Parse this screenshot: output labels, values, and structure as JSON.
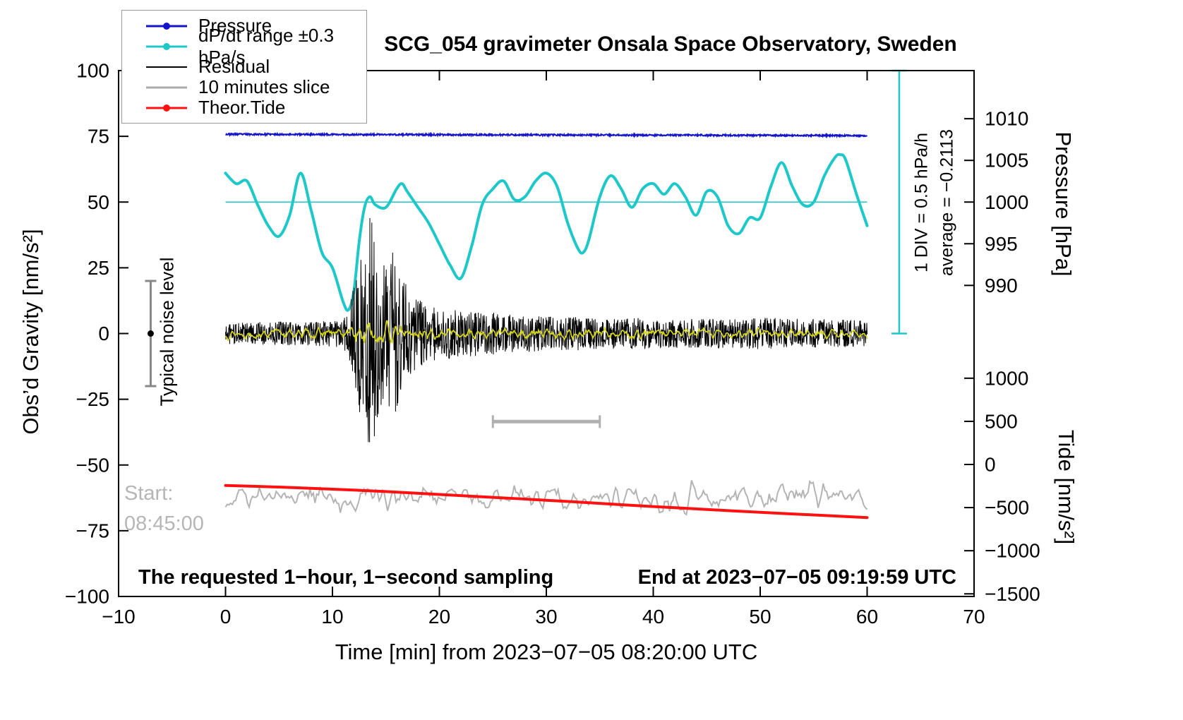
{
  "title": "SCG_054 gravimeter Onsala Space Observatory, Sweden",
  "legend": {
    "items": [
      {
        "label": "Pressure",
        "color": "#1414cc",
        "marker": "line-dot"
      },
      {
        "label": "dP/dt range ±0.3 hPa/s",
        "color": "#1fc8c8",
        "marker": "line-dot"
      },
      {
        "label": "Residual",
        "color": "#000000",
        "marker": "line"
      },
      {
        "label": "10 minutes slice",
        "color": "#aaaaaa",
        "marker": "line"
      },
      {
        "label": "Theor.Tide",
        "color": "#ff1111",
        "marker": "line-dot"
      }
    ]
  },
  "axes": {
    "x": {
      "label": "Time [min] from 2023−07−05 08:20:00 UTC",
      "min": -10,
      "max": 70,
      "ticks": [
        -10,
        0,
        10,
        20,
        30,
        40,
        50,
        60,
        70
      ],
      "tick_labels": [
        "−10",
        "0",
        "10",
        "20",
        "30",
        "40",
        "50",
        "60",
        "70"
      ]
    },
    "y_left": {
      "label": "Obs’d Gravity [nm/s²]",
      "min": -100,
      "max": 100,
      "ticks": [
        -100,
        -75,
        -50,
        -25,
        0,
        25,
        50,
        75,
        100
      ],
      "tick_labels": [
        "−100",
        "−75",
        "−50",
        "−25",
        "0",
        "25",
        "50",
        "75",
        "100"
      ]
    },
    "y_right_pressure": {
      "label": "Pressure [hPa]",
      "ticks": [
        1010,
        1005,
        1000,
        995,
        990
      ],
      "tick_labels": [
        "1010",
        "1005",
        "1000",
        "995",
        "990"
      ],
      "map": {
        "ref_hpa": 1000,
        "ref_gravity": 50,
        "gravity_per_hpa": 3.17
      }
    },
    "y_right_tide": {
      "label": "Tide [nm/s²]",
      "ticks": [
        1000,
        500,
        0,
        -500,
        -1000,
        -1500
      ],
      "tick_labels": [
        "1000",
        "500",
        "0",
        "−500",
        "−1000",
        "−1500"
      ],
      "map": {
        "ref_value": 0,
        "ref_gravity": -49.8,
        "gravity_per_unit": 0.0328
      }
    }
  },
  "annotations": {
    "noise_label": "Typical noise level",
    "start_label": "Start:",
    "start_time": "08:45:00",
    "bottom_left": "The requested 1−hour, 1−second sampling",
    "bottom_right": "End at 2023−07−05 09:19:59 UTC",
    "div_label": "1 DIV = 0.5 hPa/h",
    "average_label": "average = −0.2113"
  },
  "chart_data": {
    "type": "line",
    "x_axis": {
      "label": "Time [min] from 2023−07−05 08:20:00 UTC",
      "range": [
        -10,
        70
      ]
    },
    "y_axis_left": {
      "label": "Obs’d Gravity [nm/s²]",
      "range": [
        -100,
        100
      ]
    },
    "y_axis_right_pressure": {
      "label": "Pressure [hPa]",
      "range_shown": [
        990,
        1010
      ]
    },
    "y_axis_right_tide": {
      "label": "Tide [nm/s²]",
      "range_shown": [
        -1500,
        1000
      ]
    },
    "series": [
      {
        "name": "Pressure",
        "color": "#1414cc",
        "style": "noisy-line",
        "note": "flat pressure trace ≈1008 hPa, plotted near gravity 75.5",
        "baseline_points": [
          [
            0,
            75.8
          ],
          [
            20,
            75.6
          ],
          [
            40,
            75.45
          ],
          [
            60,
            75.3
          ]
        ],
        "noise_amplitude": 0.3
      },
      {
        "name": "dP/dt",
        "color": "#1fc8c8",
        "style": "smooth",
        "points": [
          [
            0,
            61
          ],
          [
            1,
            57
          ],
          [
            2,
            58
          ],
          [
            3,
            49
          ],
          [
            4,
            41
          ],
          [
            5,
            37
          ],
          [
            6,
            45
          ],
          [
            7,
            61
          ],
          [
            8,
            47
          ],
          [
            9,
            31
          ],
          [
            10,
            25
          ],
          [
            11,
            12
          ],
          [
            11.5,
            9
          ],
          [
            12,
            16
          ],
          [
            12.5,
            35
          ],
          [
            13,
            48
          ],
          [
            13.5,
            52
          ],
          [
            14,
            49
          ],
          [
            15,
            48
          ],
          [
            16,
            55
          ],
          [
            16.5,
            57
          ],
          [
            17,
            54
          ],
          [
            18,
            48
          ],
          [
            19,
            42
          ],
          [
            20,
            34
          ],
          [
            21,
            26
          ],
          [
            22,
            21
          ],
          [
            23,
            33
          ],
          [
            24,
            49
          ],
          [
            25,
            55
          ],
          [
            26,
            58
          ],
          [
            27,
            51
          ],
          [
            28,
            52
          ],
          [
            29,
            58
          ],
          [
            30,
            61
          ],
          [
            31,
            56
          ],
          [
            32,
            42
          ],
          [
            33,
            32
          ],
          [
            33.5,
            31
          ],
          [
            34,
            36
          ],
          [
            35,
            52
          ],
          [
            36,
            60
          ],
          [
            37,
            55
          ],
          [
            38,
            48
          ],
          [
            39,
            55
          ],
          [
            40,
            57
          ],
          [
            41,
            53
          ],
          [
            42,
            57
          ],
          [
            43,
            52
          ],
          [
            44,
            45
          ],
          [
            45,
            54
          ],
          [
            46,
            52
          ],
          [
            47,
            41
          ],
          [
            48,
            38
          ],
          [
            49,
            44
          ],
          [
            50,
            44
          ],
          [
            51,
            56
          ],
          [
            52,
            65
          ],
          [
            53,
            56
          ],
          [
            54,
            49
          ],
          [
            55,
            50
          ],
          [
            56,
            60
          ],
          [
            57,
            67
          ],
          [
            57.5,
            68
          ],
          [
            58,
            66
          ],
          [
            59,
            53
          ],
          [
            60,
            41
          ]
        ]
      },
      {
        "name": "dP/dt zero line",
        "color": "#1fc8c8",
        "style": "hline",
        "y": 50,
        "x_range": [
          0,
          60
        ]
      },
      {
        "name": "Residual",
        "color": "#000000",
        "style": "noise",
        "center": 0,
        "note": "seismic burst near t=12–17 min, peak amplitude ≈ ±46 nm/s²",
        "envelope": [
          [
            0,
            4
          ],
          [
            5,
            4.5
          ],
          [
            10,
            5
          ],
          [
            11,
            5.5
          ],
          [
            11.5,
            9
          ],
          [
            12,
            18
          ],
          [
            12.5,
            30
          ],
          [
            13,
            38
          ],
          [
            13.5,
            46
          ],
          [
            14,
            40
          ],
          [
            14.5,
            30
          ],
          [
            15,
            24
          ],
          [
            15.5,
            31
          ],
          [
            16,
            34
          ],
          [
            16.5,
            26
          ],
          [
            17,
            17
          ],
          [
            18,
            13
          ],
          [
            19,
            11
          ],
          [
            20,
            10
          ],
          [
            22,
            9
          ],
          [
            25,
            8
          ],
          [
            28,
            7
          ],
          [
            32,
            6.5
          ],
          [
            36,
            6
          ],
          [
            40,
            6
          ],
          [
            45,
            5.5
          ],
          [
            50,
            6
          ],
          [
            55,
            5.5
          ],
          [
            60,
            5
          ]
        ]
      },
      {
        "name": "Residual smoothed",
        "color": "#d6d619",
        "style": "noise-smooth",
        "center": 0,
        "envelope": [
          [
            0,
            1.4
          ],
          [
            10,
            1.7
          ],
          [
            11.5,
            2.5
          ],
          [
            12,
            3.5
          ],
          [
            12.5,
            5
          ],
          [
            13,
            5
          ],
          [
            13.5,
            4
          ],
          [
            14,
            3.5
          ],
          [
            15,
            3
          ],
          [
            16,
            2.6
          ],
          [
            18,
            2.2
          ],
          [
            20,
            2
          ],
          [
            25,
            1.8
          ],
          [
            30,
            1.7
          ],
          [
            40,
            1.7
          ],
          [
            50,
            1.7
          ],
          [
            60,
            1.4
          ]
        ]
      },
      {
        "name": "10 minutes slice trace",
        "color": "#b4b4b4",
        "style": "noise-smooth",
        "center": -62,
        "envelope": [
          [
            0,
            3.2
          ],
          [
            5,
            3.6
          ],
          [
            10,
            4
          ],
          [
            15,
            4.4
          ],
          [
            20,
            4
          ],
          [
            25,
            4
          ],
          [
            30,
            4
          ],
          [
            35,
            3.6
          ],
          [
            40,
            5
          ],
          [
            42,
            6
          ],
          [
            45,
            3.2
          ],
          [
            50,
            4.2
          ],
          [
            52,
            5
          ],
          [
            55,
            4
          ],
          [
            58,
            3.6
          ],
          [
            60,
            4
          ]
        ]
      },
      {
        "name": "Theor.Tide",
        "color": "#ff1111",
        "style": "smooth",
        "note": "theoretical tide, ≈ −250 to −620 nm/s² on tide axis",
        "points": [
          [
            0,
            -57.8
          ],
          [
            5,
            -58.4
          ],
          [
            10,
            -59.2
          ],
          [
            15,
            -60.1
          ],
          [
            20,
            -61.2
          ],
          [
            25,
            -62.3
          ],
          [
            30,
            -63.4
          ],
          [
            35,
            -64.6
          ],
          [
            40,
            -65.8
          ],
          [
            45,
            -66.9
          ],
          [
            50,
            -68
          ],
          [
            55,
            -69
          ],
          [
            60,
            -70
          ]
        ]
      }
    ],
    "markers": {
      "noise_errorbar": {
        "x": -7,
        "y_from": -20,
        "y_to": 20,
        "dot_y": 0
      },
      "ten_minute_bar": {
        "x_from": 25,
        "x_to": 35,
        "y": -33.5
      },
      "pressure_div_indicator": {
        "x": 63,
        "y_from": 0,
        "y_to": 100
      }
    }
  }
}
